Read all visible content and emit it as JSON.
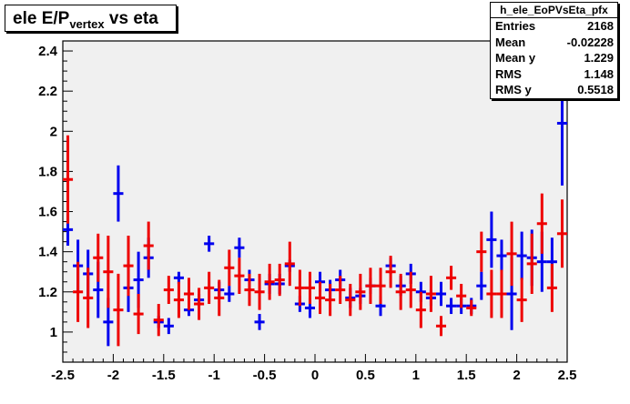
{
  "chart_data": {
    "type": "scatter",
    "title": "ele E/P",
    "title_sub": "vertex",
    "title_tail": " vs eta",
    "xlim": [
      -2.5,
      2.5
    ],
    "ylim": [
      0.85,
      2.45
    ],
    "x_ticks": [
      "-2.5",
      "-2",
      "-1.5",
      "-1",
      "-0.5",
      "0",
      "0.5",
      "1",
      "1.5",
      "2",
      "2.5"
    ],
    "x_tick_values": [
      -2.5,
      -2,
      -1.5,
      -1,
      -0.5,
      0,
      0.5,
      1,
      1.5,
      2,
      2.5
    ],
    "y_ticks": [
      "1",
      "1.2",
      "1.4",
      "1.6",
      "1.8",
      "2",
      "2.2",
      "2.4"
    ],
    "y_tick_values": [
      1,
      1.2,
      1.4,
      1.6,
      1.8,
      2,
      2.2,
      2.4
    ],
    "series": [
      {
        "color": "#0000ee",
        "points": [
          [
            -2.45,
            1.51,
            0.08
          ],
          [
            -2.35,
            1.33,
            0.13
          ],
          [
            -2.25,
            1.29,
            0.12
          ],
          [
            -2.15,
            1.21,
            0.14
          ],
          [
            -2.05,
            1.05,
            0.12
          ],
          [
            -1.95,
            1.69,
            0.14
          ],
          [
            -1.85,
            1.22,
            0.12
          ],
          [
            -1.75,
            1.26,
            0.14
          ],
          [
            -1.65,
            1.37,
            0.1
          ],
          [
            -1.55,
            1.05,
            0.03
          ],
          [
            -1.45,
            1.03,
            0.04
          ],
          [
            -1.35,
            1.27,
            0.03
          ],
          [
            -1.25,
            1.11,
            0.03
          ],
          [
            -1.15,
            1.16,
            0.03
          ],
          [
            -1.05,
            1.44,
            0.04
          ],
          [
            -0.95,
            1.21,
            0.04
          ],
          [
            -0.85,
            1.19,
            0.04
          ],
          [
            -0.75,
            1.42,
            0.05
          ],
          [
            -0.65,
            1.26,
            0.05
          ],
          [
            -0.55,
            1.05,
            0.04
          ],
          [
            -0.45,
            1.24,
            0.05
          ],
          [
            -0.35,
            1.24,
            0.05
          ],
          [
            -0.25,
            1.33,
            0.03
          ],
          [
            -0.15,
            1.14,
            0.04
          ],
          [
            -0.05,
            1.12,
            0.05
          ],
          [
            0.05,
            1.25,
            0.05
          ],
          [
            0.15,
            1.21,
            0.05
          ],
          [
            0.25,
            1.26,
            0.05
          ],
          [
            0.35,
            1.17,
            0.05
          ],
          [
            0.45,
            1.18,
            0.04
          ],
          [
            0.55,
            1.23,
            0.04
          ],
          [
            0.65,
            1.13,
            0.05
          ],
          [
            0.75,
            1.33,
            0.04
          ],
          [
            0.85,
            1.23,
            0.05
          ],
          [
            0.95,
            1.29,
            0.05
          ],
          [
            1.05,
            1.2,
            0.05
          ],
          [
            1.15,
            1.17,
            0.04
          ],
          [
            1.25,
            1.19,
            0.06
          ],
          [
            1.35,
            1.13,
            0.04
          ],
          [
            1.45,
            1.13,
            0.04
          ],
          [
            1.55,
            1.13,
            0.04
          ],
          [
            1.65,
            1.23,
            0.07
          ],
          [
            1.75,
            1.46,
            0.14
          ],
          [
            1.85,
            1.38,
            0.08
          ],
          [
            1.95,
            1.19,
            0.18
          ],
          [
            2.05,
            1.38,
            0.12
          ],
          [
            2.15,
            1.37,
            0.14
          ],
          [
            2.25,
            1.35,
            0.15
          ],
          [
            2.35,
            1.35,
            0.12
          ],
          [
            2.45,
            2.04,
            0.31
          ]
        ]
      },
      {
        "color": "#ee0000",
        "points": [
          [
            -2.45,
            1.76,
            0.22
          ],
          [
            -2.35,
            1.2,
            0.15
          ],
          [
            -2.25,
            1.17,
            0.15
          ],
          [
            -2.15,
            1.37,
            0.12
          ],
          [
            -2.05,
            1.3,
            0.18
          ],
          [
            -1.95,
            1.11,
            0.18
          ],
          [
            -1.85,
            1.33,
            0.15
          ],
          [
            -1.75,
            1.09,
            0.1
          ],
          [
            -1.65,
            1.43,
            0.12
          ],
          [
            -1.55,
            1.06,
            0.08
          ],
          [
            -1.45,
            1.21,
            0.07
          ],
          [
            -1.35,
            1.16,
            0.09
          ],
          [
            -1.25,
            1.19,
            0.08
          ],
          [
            -1.15,
            1.14,
            0.08
          ],
          [
            -1.05,
            1.22,
            0.08
          ],
          [
            -0.95,
            1.17,
            0.09
          ],
          [
            -0.85,
            1.32,
            0.09
          ],
          [
            -0.75,
            1.28,
            0.09
          ],
          [
            -0.65,
            1.21,
            0.08
          ],
          [
            -0.55,
            1.2,
            0.09
          ],
          [
            -0.45,
            1.25,
            0.09
          ],
          [
            -0.35,
            1.26,
            0.08
          ],
          [
            -0.25,
            1.34,
            0.11
          ],
          [
            -0.15,
            1.22,
            0.09
          ],
          [
            -0.05,
            1.22,
            0.08
          ],
          [
            0.05,
            1.17,
            0.08
          ],
          [
            0.15,
            1.16,
            0.08
          ],
          [
            0.25,
            1.21,
            0.07
          ],
          [
            0.35,
            1.16,
            0.08
          ],
          [
            0.45,
            1.2,
            0.09
          ],
          [
            0.55,
            1.23,
            0.09
          ],
          [
            0.65,
            1.23,
            0.09
          ],
          [
            0.75,
            1.3,
            0.08
          ],
          [
            0.85,
            1.2,
            0.09
          ],
          [
            0.95,
            1.21,
            0.09
          ],
          [
            1.05,
            1.11,
            0.09
          ],
          [
            1.15,
            1.19,
            0.09
          ],
          [
            1.25,
            1.03,
            0.05
          ],
          [
            1.35,
            1.27,
            0.06
          ],
          [
            1.45,
            1.18,
            0.06
          ],
          [
            1.55,
            1.12,
            0.04
          ],
          [
            1.65,
            1.4,
            0.1
          ],
          [
            1.75,
            1.19,
            0.12
          ],
          [
            1.85,
            1.19,
            0.12
          ],
          [
            1.95,
            1.39,
            0.16
          ],
          [
            2.05,
            1.16,
            0.11
          ],
          [
            2.15,
            1.34,
            0.15
          ],
          [
            2.25,
            1.54,
            0.15
          ],
          [
            2.35,
            1.22,
            0.12
          ],
          [
            2.45,
            1.49,
            0.17
          ]
        ]
      }
    ]
  },
  "stats": {
    "name": "h_ele_EoPVsEta_pfx",
    "rows": [
      {
        "k": "Entries",
        "v": "2168"
      },
      {
        "k": "Mean",
        "v": "-0.02228"
      },
      {
        "k": "Mean y",
        "v": "1.229"
      },
      {
        "k": "RMS",
        "v": "1.148"
      },
      {
        "k": "RMS y",
        "v": "0.5518"
      }
    ]
  }
}
